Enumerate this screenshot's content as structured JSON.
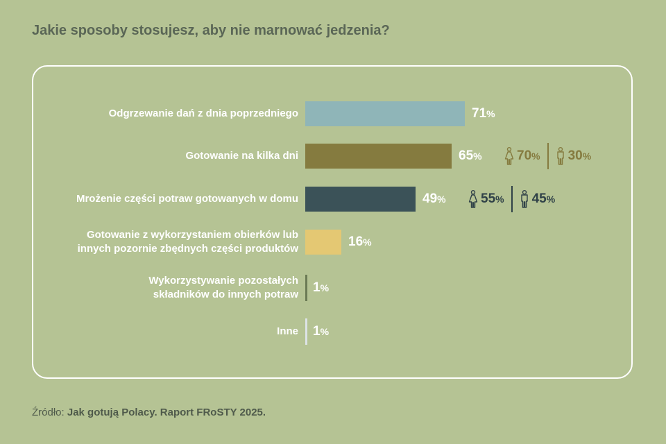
{
  "title": "Jakie sposoby stosujesz, aby nie marnować jedzenia?",
  "source": {
    "label": "Źródło:",
    "text": "Jak gotują Polacy. Raport FRoSTY 2025."
  },
  "colors": {
    "background": "#b5c394",
    "card_border": "#ffffff",
    "text_white": "#ffffff"
  },
  "chart_data": {
    "type": "bar",
    "orientation": "horizontal",
    "title": "Jakie sposoby stosujesz, aby nie marnować jedzenia?",
    "unit": "%",
    "xlim": [
      0,
      100
    ],
    "categories": [
      "Odgrzewanie dań z dnia poprzedniego",
      "Gotowanie na kilka dni",
      "Mrożenie części potraw gotowanych w domu",
      "Gotowanie z wykorzystaniem obierków lub innych pozornie zbędnych części produktów",
      "Wykorzystywanie pozostałych składników do innych potraw",
      "Inne"
    ],
    "label_lines": [
      [
        "Odgrzewanie dań z dnia poprzedniego"
      ],
      [
        "Gotowanie na kilka dni"
      ],
      [
        "Mrożenie części potraw gotowanych w domu"
      ],
      [
        "Gotowanie z wykorzystaniem obierków lub",
        "innych pozornie zbędnych części produktów"
      ],
      [
        "Wykorzystywanie pozostałych",
        "składników do innych potraw"
      ],
      [
        "Inne"
      ]
    ],
    "values": [
      71,
      65,
      49,
      16,
      1,
      1
    ],
    "bar_colors": [
      "#8fb5b8",
      "#857b3f",
      "#3b5258",
      "#e4c873",
      "#6b7a55",
      "#dde3e6"
    ],
    "gender_split": [
      null,
      {
        "female": 70,
        "male": 30,
        "color": "#857b3f"
      },
      {
        "female": 55,
        "male": 45,
        "color": "#2f4147"
      },
      null,
      null,
      null
    ]
  }
}
